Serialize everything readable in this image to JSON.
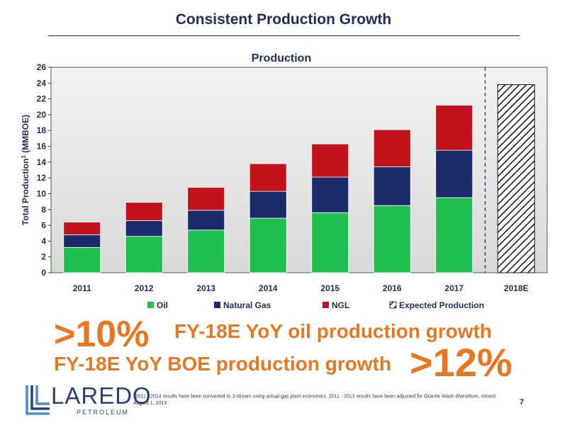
{
  "slide": {
    "title": "Consistent Production Growth",
    "page_number": "7"
  },
  "chart_data": {
    "type": "bar",
    "stacked": true,
    "title": "Production",
    "ylabel": "Total Production",
    "ylabel_superscript": "1",
    "ylabel_unit": "(MMBOE)",
    "xlabel": "",
    "ylim": [
      0,
      26
    ],
    "yticks": [
      0,
      2,
      4,
      6,
      8,
      10,
      12,
      14,
      16,
      18,
      20,
      22,
      24,
      26
    ],
    "categories": [
      "2011",
      "2012",
      "2013",
      "2014",
      "2015",
      "2016",
      "2017",
      "2018E"
    ],
    "series": [
      {
        "name": "Oil",
        "color": "#1fbf4f",
        "values": [
          3.2,
          4.6,
          5.4,
          6.9,
          7.6,
          8.5,
          9.5,
          null
        ]
      },
      {
        "name": "Natural Gas",
        "color": "#1b2a6b",
        "values": [
          1.6,
          2.0,
          2.5,
          3.4,
          4.5,
          4.9,
          6.0,
          null
        ]
      },
      {
        "name": "NGL",
        "color": "#c2121b",
        "values": [
          1.6,
          2.3,
          2.9,
          3.5,
          4.2,
          4.7,
          5.7,
          null
        ]
      },
      {
        "name": "Expected Production",
        "pattern": "hatch",
        "values": [
          null,
          null,
          null,
          null,
          null,
          null,
          null,
          23.8
        ]
      }
    ],
    "divider_after_category": "2017",
    "grid": false,
    "legend_position": "bottom"
  },
  "callouts": {
    "oil_pct": ">10%",
    "oil_text": "FY-18E YoY oil production growth",
    "boe_text": "FY-18E YoY BOE production growth",
    "boe_pct": ">12%",
    "color": "#e87722"
  },
  "logo": {
    "word": "LAREDO",
    "sub": "PETROLEUM"
  },
  "footnote": {
    "marker": "1",
    "text": "2011 - 2014 results have been converted to 3-stream using actual gas plant economics. 2011 - 2013 results have been adjusted for Granite Wash divestiture, closed August 1, 2013"
  }
}
